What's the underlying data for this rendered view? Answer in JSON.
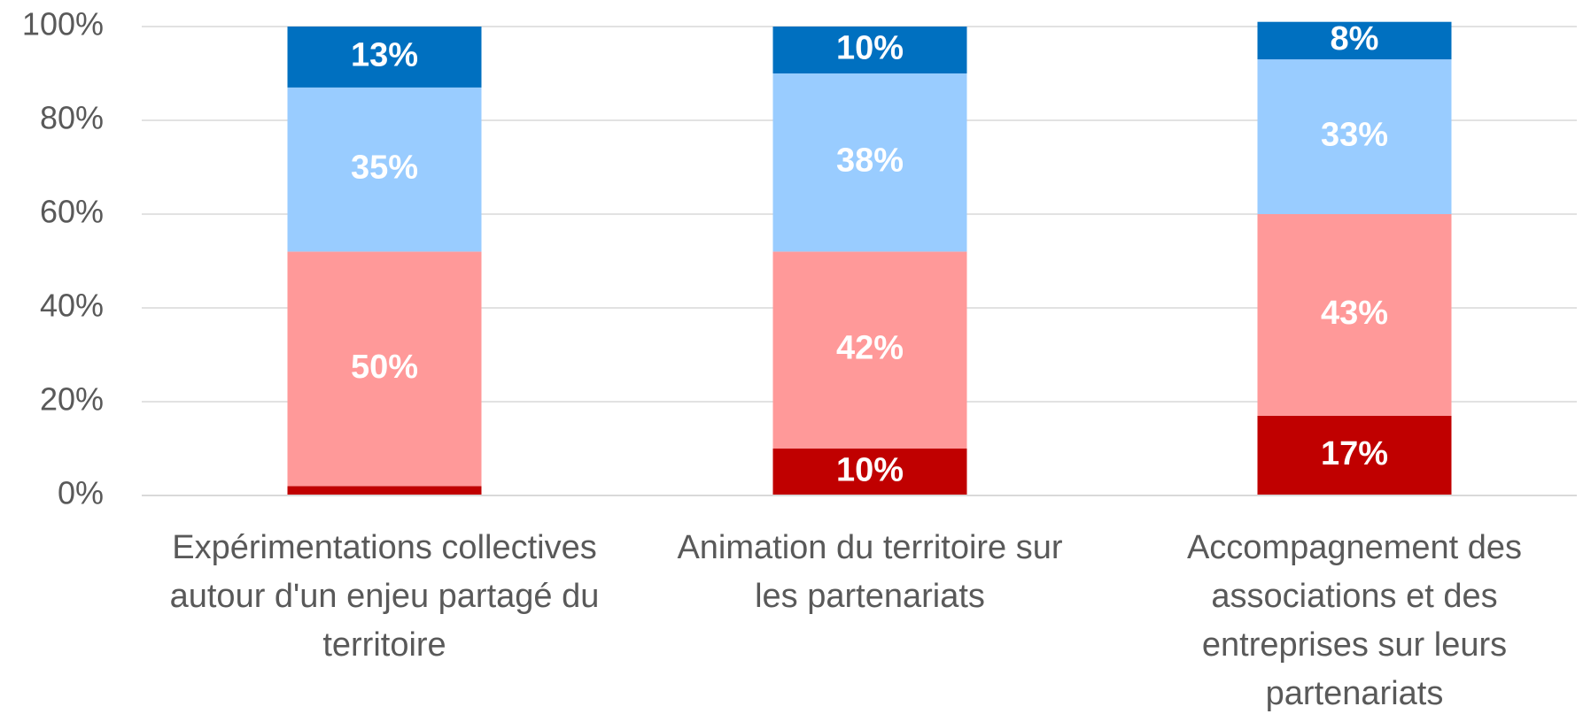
{
  "chart_data": {
    "type": "stacked_bar",
    "categories": [
      "Expérimentations collectives autour d'un enjeu partagé du territoire",
      "Animation du territoire sur les partenariats",
      "Accompagnement des associations et des entreprises sur leurs partenariats"
    ],
    "series": [
      {
        "color": "#c00000",
        "values": [
          2,
          10,
          17
        ],
        "value_labels": [
          "2%",
          "10%",
          "17%"
        ]
      },
      {
        "color": "#ff9999",
        "values": [
          50,
          42,
          43
        ],
        "value_labels": [
          "50%",
          "42%",
          "43%"
        ]
      },
      {
        "color": "#99ccff",
        "values": [
          35,
          38,
          33
        ],
        "value_labels": [
          "35%",
          "38%",
          "33%"
        ]
      },
      {
        "color": "#0070c0",
        "values": [
          13,
          10,
          8
        ],
        "value_labels": [
          "13%",
          "10%",
          "8%"
        ]
      }
    ],
    "ylim": [
      0,
      100
    ],
    "yticks": [
      {
        "value": 0,
        "label": "0%"
      },
      {
        "value": 20,
        "label": "20%"
      },
      {
        "value": 40,
        "label": "40%"
      },
      {
        "value": 60,
        "label": "60%"
      },
      {
        "value": 80,
        "label": "80%"
      },
      {
        "value": 100,
        "label": "100%"
      }
    ],
    "grid": true
  }
}
